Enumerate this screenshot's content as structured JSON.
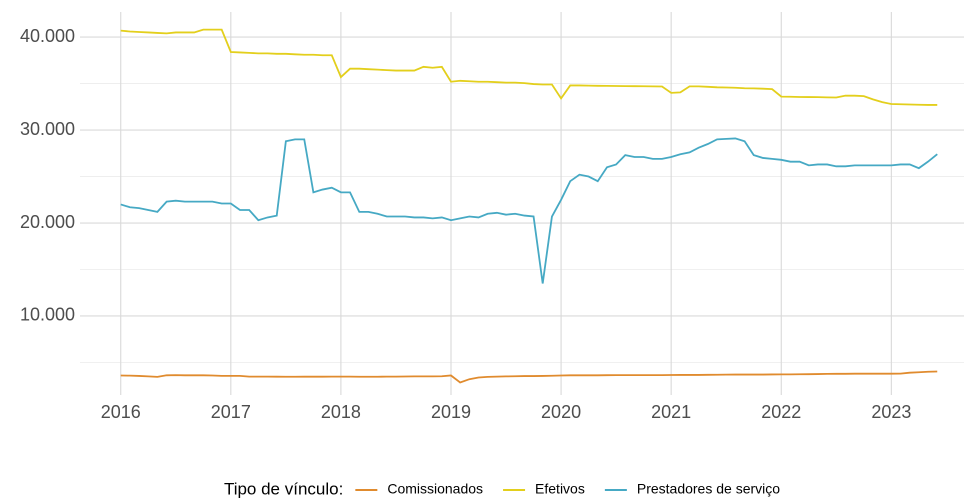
{
  "chart_data": {
    "type": "line",
    "x": [
      2016,
      2016.083,
      2016.167,
      2016.25,
      2016.333,
      2016.417,
      2016.5,
      2016.583,
      2016.667,
      2016.75,
      2016.833,
      2016.917,
      2017,
      2017.083,
      2017.167,
      2017.25,
      2017.333,
      2017.417,
      2017.5,
      2017.583,
      2017.667,
      2017.75,
      2017.833,
      2017.917,
      2018,
      2018.083,
      2018.167,
      2018.25,
      2018.333,
      2018.417,
      2018.5,
      2018.583,
      2018.667,
      2018.75,
      2018.833,
      2018.917,
      2019,
      2019.083,
      2019.167,
      2019.25,
      2019.333,
      2019.417,
      2019.5,
      2019.583,
      2019.667,
      2019.75,
      2019.833,
      2019.917,
      2020,
      2020.083,
      2020.167,
      2020.25,
      2020.333,
      2020.417,
      2020.5,
      2020.583,
      2020.667,
      2020.75,
      2020.833,
      2020.917,
      2021,
      2021.083,
      2021.167,
      2021.25,
      2021.333,
      2021.417,
      2021.5,
      2021.583,
      2021.667,
      2021.75,
      2021.833,
      2021.917,
      2022,
      2022.083,
      2022.167,
      2022.25,
      2022.333,
      2022.417,
      2022.5,
      2022.583,
      2022.667,
      2022.75,
      2022.833,
      2022.917,
      2023,
      2023.083,
      2023.167,
      2023.25,
      2023.333,
      2023.417
    ],
    "series": [
      {
        "name": "Comissionados",
        "color": "#e08b2e",
        "values": [
          3600,
          3580,
          3550,
          3500,
          3450,
          3620,
          3640,
          3620,
          3620,
          3620,
          3600,
          3560,
          3560,
          3560,
          3480,
          3480,
          3480,
          3470,
          3460,
          3460,
          3470,
          3470,
          3470,
          3480,
          3480,
          3480,
          3460,
          3460,
          3460,
          3480,
          3480,
          3490,
          3500,
          3500,
          3500,
          3520,
          3600,
          2850,
          3200,
          3380,
          3450,
          3480,
          3500,
          3520,
          3540,
          3540,
          3550,
          3570,
          3600,
          3620,
          3620,
          3620,
          3620,
          3630,
          3640,
          3640,
          3640,
          3640,
          3640,
          3640,
          3650,
          3660,
          3660,
          3660,
          3670,
          3680,
          3690,
          3700,
          3700,
          3700,
          3700,
          3710,
          3720,
          3720,
          3730,
          3740,
          3750,
          3770,
          3780,
          3780,
          3790,
          3790,
          3790,
          3790,
          3790,
          3800,
          3900,
          3950,
          4000,
          4030
        ]
      },
      {
        "name": "Efetivos",
        "color": "#e3cf1c",
        "values": [
          40700,
          40600,
          40550,
          40500,
          40450,
          40400,
          40500,
          40500,
          40500,
          40800,
          40800,
          40800,
          38400,
          38350,
          38300,
          38250,
          38250,
          38200,
          38200,
          38150,
          38100,
          38100,
          38050,
          38050,
          35700,
          36600,
          36600,
          36550,
          36500,
          36450,
          36400,
          36400,
          36400,
          36800,
          36700,
          36800,
          35200,
          35300,
          35250,
          35200,
          35200,
          35150,
          35100,
          35100,
          35050,
          34950,
          34900,
          34900,
          33400,
          34800,
          34800,
          34780,
          34760,
          34750,
          34740,
          34730,
          34720,
          34710,
          34700,
          34690,
          34000,
          34050,
          34700,
          34700,
          34650,
          34600,
          34580,
          34550,
          34500,
          34480,
          34450,
          34400,
          33600,
          33580,
          33560,
          33550,
          33540,
          33520,
          33500,
          33700,
          33700,
          33650,
          33300,
          33000,
          32800,
          32780,
          32750,
          32720,
          32700,
          32700
        ]
      },
      {
        "name": "Prestadores de serviço",
        "color": "#46a9c4",
        "values": [
          22000,
          21700,
          21600,
          21400,
          21200,
          22300,
          22400,
          22300,
          22300,
          22300,
          22300,
          22100,
          22100,
          21400,
          21400,
          20300,
          20600,
          20800,
          28800,
          29000,
          29000,
          23300,
          23600,
          23800,
          23300,
          23300,
          21200,
          21200,
          21000,
          20700,
          20700,
          20700,
          20600,
          20600,
          20500,
          20600,
          20300,
          20500,
          20700,
          20600,
          21000,
          21100,
          20900,
          21000,
          20800,
          20700,
          13500,
          20700,
          22500,
          24500,
          25200,
          25000,
          24500,
          26000,
          26300,
          27300,
          27100,
          27100,
          26900,
          26900,
          27100,
          27400,
          27600,
          28100,
          28500,
          29000,
          29050,
          29100,
          28800,
          27300,
          27000,
          26900,
          26800,
          26600,
          26600,
          26200,
          26300,
          26300,
          26100,
          26100,
          26200,
          26200,
          26200,
          26200,
          26200,
          26300,
          26300,
          25900,
          26600,
          27400
        ]
      }
    ],
    "xlim": [
      2015.63,
      2023.66
    ],
    "xticks": [
      2016,
      2017,
      2018,
      2019,
      2020,
      2021,
      2022,
      2023
    ],
    "ylim": [
      1500,
      42700
    ],
    "yticks": [
      {
        "value": 10000,
        "label": "10.000"
      },
      {
        "value": 20000,
        "label": "20.000"
      },
      {
        "value": 30000,
        "label": "30.000"
      },
      {
        "value": 40000,
        "label": "40.000"
      }
    ],
    "yminor": [
      5000,
      15000,
      25000,
      35000
    ],
    "grid": true,
    "legend_position": "bottom",
    "legend_title": "Tipo de vínculo:"
  }
}
